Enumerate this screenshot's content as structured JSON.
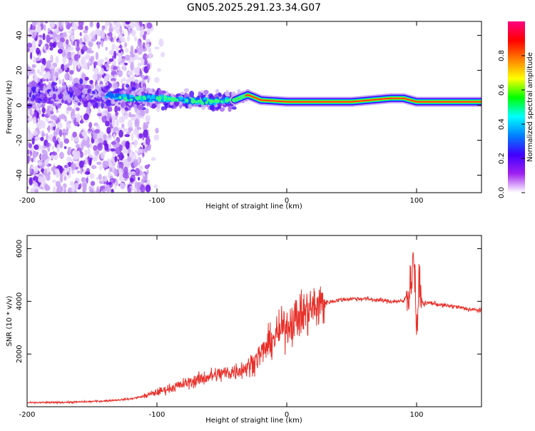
{
  "title": "GN05.2025.291.23.34.G07",
  "chart_data": [
    {
      "type": "heatmap",
      "xlabel": "Height of straight line (km)",
      "ylabel": "Frequency (Hz)",
      "xlim": [
        -200,
        150
      ],
      "ylim": [
        -50,
        48
      ],
      "xticks": [
        -200,
        -100,
        0,
        100
      ],
      "yticks": [
        -40,
        -20,
        0,
        20,
        40
      ],
      "colorbar": {
        "label": "Normalized spectral amplitude",
        "range": [
          0,
          1
        ],
        "ticks": [
          0.0,
          0.2,
          0.4,
          0.6,
          0.8
        ],
        "tick_labels": [
          "0.0",
          "0.2",
          "0.4",
          "0.6",
          "0.8"
        ],
        "colors": [
          "#ffffff",
          "#a020f0",
          "#4000ff",
          "#0080ff",
          "#00ffff",
          "#00ff00",
          "#ffff00",
          "#ff8000",
          "#ff0000",
          "#ff0080"
        ]
      },
      "ridge": {
        "description_points_x": [
          -140,
          -120,
          -100,
          -80,
          -60,
          -40,
          -30,
          -20,
          0,
          20,
          50,
          80,
          90,
          100,
          150
        ],
        "frequency_hz": [
          6,
          4,
          4,
          3,
          2,
          3,
          6,
          3,
          2,
          2,
          2,
          4,
          4,
          2,
          2
        ]
      }
    },
    {
      "type": "line",
      "xlabel": "Height of straight line (km)",
      "ylabel": "SNR (10 * v/v)",
      "xlim": [
        -200,
        150
      ],
      "ylim": [
        0,
        6500
      ],
      "xticks": [
        -200,
        -100,
        0,
        100
      ],
      "yticks": [
        2000,
        4000,
        6000
      ],
      "series": [
        {
          "color": "#e8302a",
          "x": [
            -200,
            -180,
            -160,
            -140,
            -120,
            -110,
            -100,
            -90,
            -80,
            -70,
            -60,
            -50,
            -40,
            -30,
            -20,
            -10,
            0,
            10,
            20,
            30,
            40,
            50,
            60,
            70,
            80,
            90,
            95,
            98,
            100,
            102,
            105,
            110,
            120,
            130,
            140,
            150
          ],
          "y": [
            150,
            160,
            180,
            220,
            300,
            400,
            550,
            700,
            850,
            1000,
            1150,
            1250,
            1350,
            1500,
            2000,
            2600,
            3100,
            3450,
            3750,
            3950,
            4050,
            4100,
            4100,
            4050,
            4000,
            4000,
            4500,
            5800,
            3000,
            4500,
            3900,
            3950,
            3850,
            3800,
            3700,
            3650
          ]
        }
      ]
    }
  ]
}
